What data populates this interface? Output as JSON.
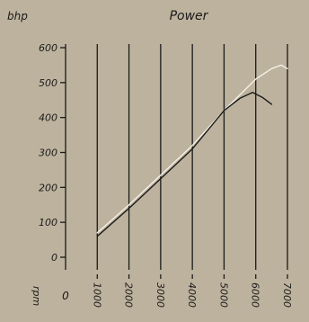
{
  "chart_data": {
    "type": "line",
    "title": "Power",
    "ylabel": "bhp",
    "xlabel": "rpm",
    "x_origin_label": "0",
    "ylim": [
      0,
      600
    ],
    "xlim": [
      0,
      7000
    ],
    "yticks": [
      "0",
      "100",
      "200",
      "300",
      "400",
      "500",
      "600"
    ],
    "xticks": [
      "1000",
      "2000",
      "3000",
      "4000",
      "5000",
      "6000",
      "7000"
    ],
    "grid": "vertical",
    "series": [
      {
        "color": "#f4f0e6",
        "x": [
          1000,
          2000,
          3000,
          4000,
          5000,
          6000,
          6500,
          6800,
          7000
        ],
        "y": [
          70,
          150,
          235,
          320,
          420,
          510,
          540,
          550,
          540
        ]
      },
      {
        "color": "#1a1a1a",
        "x": [
          1000,
          2000,
          3000,
          4000,
          5000,
          5500,
          5900,
          6200,
          6500
        ],
        "y": [
          60,
          140,
          225,
          310,
          420,
          455,
          472,
          458,
          438
        ]
      }
    ]
  }
}
